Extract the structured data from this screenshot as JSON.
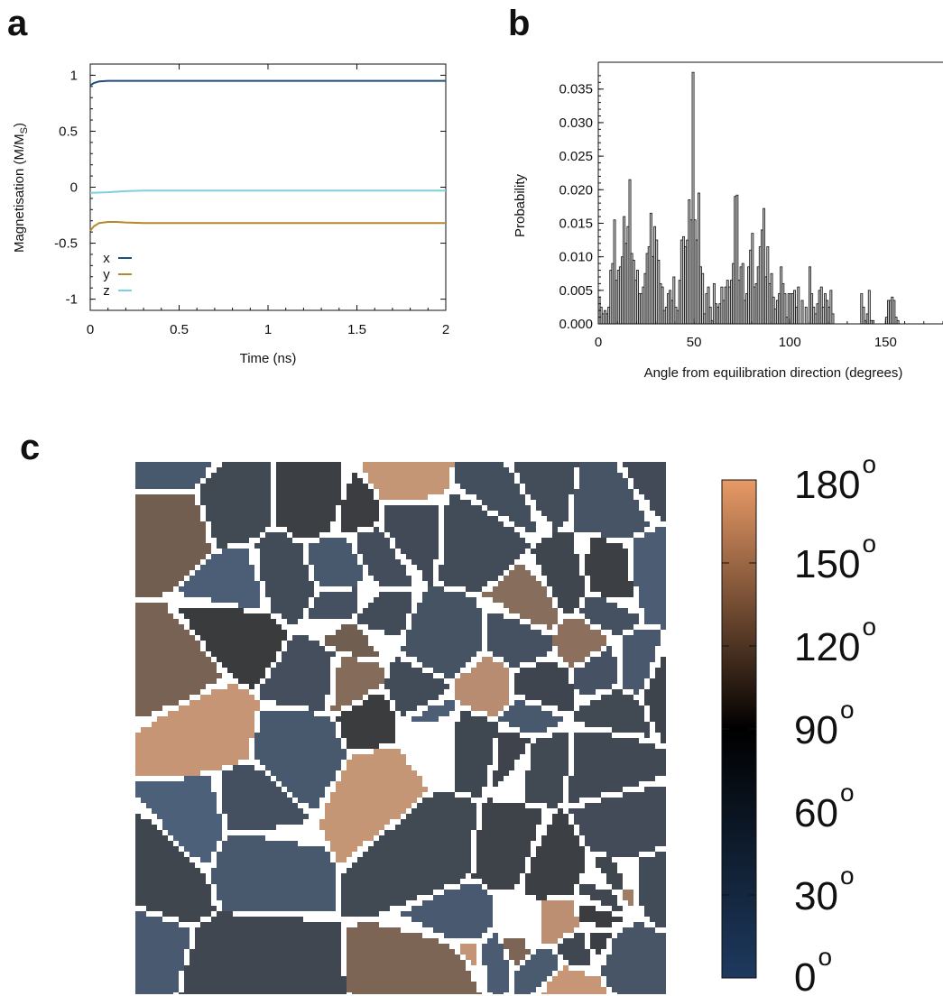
{
  "panels": {
    "a": "a",
    "b": "b",
    "c": "c"
  },
  "chart_data": [
    {
      "type": "line",
      "xlabel": "Time (ns)",
      "ylabel": "Magnetisation (M/M",
      "ylabel_sub": "S",
      "ylabel_close": ")",
      "xlim": [
        0,
        2
      ],
      "ylim": [
        -1.1,
        1.1
      ],
      "xticks": [
        "0",
        "0.5",
        "1",
        "1.5",
        "2"
      ],
      "xtick_values": [
        0,
        0.5,
        1,
        1.5,
        2
      ],
      "yticks": [
        "1",
        "0.5",
        "0",
        "-0.5",
        "-1"
      ],
      "ytick_values": [
        1,
        0.5,
        0,
        -0.5,
        -1
      ],
      "legend_position": "bottom-left",
      "series": [
        {
          "name": "x",
          "color": "#1f4e79",
          "x": [
            0,
            0.02,
            0.05,
            0.1,
            0.15,
            0.2,
            0.5,
            1,
            1.5,
            2
          ],
          "values": [
            0.91,
            0.93,
            0.945,
            0.95,
            0.95,
            0.95,
            0.95,
            0.95,
            0.95,
            0.95
          ]
        },
        {
          "name": "y",
          "color": "#b5892e",
          "x": [
            0,
            0.02,
            0.05,
            0.1,
            0.15,
            0.2,
            0.3,
            0.5,
            1,
            1.5,
            2
          ],
          "values": [
            -0.39,
            -0.35,
            -0.32,
            -0.31,
            -0.31,
            -0.315,
            -0.32,
            -0.32,
            -0.32,
            -0.32,
            -0.32
          ]
        },
        {
          "name": "z",
          "color": "#7fcfe0",
          "x": [
            0,
            0.1,
            0.2,
            0.3,
            0.5,
            1,
            1.5,
            2
          ],
          "values": [
            -0.05,
            -0.045,
            -0.035,
            -0.03,
            -0.03,
            -0.03,
            -0.03,
            -0.03
          ]
        }
      ]
    },
    {
      "type": "bar",
      "xlabel": "Angle from equilibration direction (degrees)",
      "ylabel": "Probability",
      "xlim": [
        0,
        180
      ],
      "ylim": [
        0,
        0.039
      ],
      "xticks": [
        "0",
        "50",
        "100",
        "150"
      ],
      "xtick_values": [
        0,
        50,
        100,
        150
      ],
      "yticks": [
        "0.000",
        "0.005",
        "0.010",
        "0.015",
        "0.020",
        "0.025",
        "0.030",
        "0.035"
      ],
      "ytick_values": [
        0,
        0.005,
        0.01,
        0.015,
        0.02,
        0.025,
        0.03,
        0.035
      ],
      "bin_width": 1,
      "bins_start": [
        0,
        1,
        2,
        3,
        4,
        5,
        6,
        7,
        8,
        9,
        10,
        11,
        12,
        13,
        14,
        15,
        16,
        17,
        18,
        19,
        20,
        21,
        22,
        23,
        24,
        25,
        26,
        27,
        28,
        29,
        30,
        31,
        32,
        33,
        34,
        35,
        36,
        37,
        38,
        39,
        40,
        41,
        42,
        43,
        44,
        45,
        46,
        47,
        48,
        49,
        50,
        51,
        52,
        53,
        54,
        55,
        56,
        57,
        58,
        59,
        60,
        61,
        62,
        63,
        64,
        65,
        66,
        67,
        68,
        69,
        70,
        71,
        72,
        73,
        74,
        75,
        76,
        77,
        78,
        79,
        80,
        81,
        82,
        83,
        84,
        85,
        86,
        87,
        88,
        89,
        90,
        91,
        92,
        93,
        94,
        95,
        96,
        97,
        98,
        99,
        100,
        101,
        102,
        103,
        104,
        105,
        106,
        107,
        108,
        109,
        110,
        111,
        112,
        113,
        114,
        115,
        116,
        117,
        118,
        119,
        120,
        121,
        122,
        123,
        124,
        125,
        126,
        127,
        128,
        129,
        130,
        131,
        132,
        133,
        134,
        135,
        136,
        137,
        138,
        139,
        140,
        141,
        142,
        143,
        144,
        145,
        146,
        147,
        148,
        149,
        150,
        151,
        152,
        153,
        154,
        155,
        156,
        157,
        158,
        159,
        160,
        161,
        162,
        163
      ],
      "values": [
        0.004,
        0.0025,
        0.0015,
        0.002,
        0.0015,
        0.0025,
        0.008,
        0.009,
        0.0155,
        0.0065,
        0.008,
        0.0085,
        0.01,
        0.016,
        0.012,
        0.0145,
        0.0215,
        0.0105,
        0.0095,
        0.0065,
        0.008,
        0.0045,
        0.0045,
        0.0055,
        0.0075,
        0.0105,
        0.0115,
        0.0165,
        0.01,
        0.0145,
        0.0125,
        0.0095,
        0.006,
        0.0055,
        0.002,
        0.0025,
        0.0045,
        0.005,
        0.0035,
        0.007,
        0.0025,
        0.002,
        0.0065,
        0.0125,
        0.013,
        0.0115,
        0.0125,
        0.0185,
        0.0155,
        0.0375,
        0.0155,
        0.0125,
        0.0195,
        0.0085,
        0.0075,
        0.0015,
        0.0045,
        0.0055,
        0.0025,
        0.0005,
        0.006,
        0.003,
        0.0025,
        0.003,
        0.0055,
        0.0035,
        0.0055,
        0.0065,
        0.0055,
        0.0065,
        0.009,
        0.019,
        0.0192,
        0.0065,
        0.0085,
        0.009,
        0.0035,
        0.0045,
        0.0085,
        0.011,
        0.0135,
        0.0055,
        0.006,
        0.0085,
        0.0115,
        0.014,
        0.0172,
        0.007,
        0.0115,
        0.006,
        0.0075,
        0.004,
        0.0022,
        0.0035,
        0.0045,
        0.0085,
        0.006,
        0.0045,
        0.001,
        0.0045,
        0.0045,
        0.0045,
        0.005,
        0.0025,
        0.0005,
        0.0,
        0.0,
        0.0,
        0.0,
        0.0,
        0.0,
        0.0,
        0.0,
        0.0,
        0.0,
        0.0,
        0.0,
        0.0,
        0.0,
        0.0,
        0.0,
        0.0,
        0.0,
        0.0,
        0.0,
        0.0,
        0.0,
        0.0,
        0.0,
        0.0,
        0.0,
        0.0,
        0.0,
        0.0,
        0.0,
        0.0,
        0.0,
        0.0,
        0.0,
        0.0,
        0.0,
        0.0,
        0.0,
        0.0,
        0.0,
        0.0,
        0.0,
        0.0,
        0.0,
        0.0,
        0.0,
        0.0,
        0.0,
        0.0,
        0.0,
        0.0,
        0.0,
        0.0,
        0.0,
        0.0,
        0.0,
        0.0,
        0.0,
        0.0,
        0.0,
        0.0,
        0.0,
        0.0
      ],
      "extra_bins": [
        {
          "x": 104,
          "v": 0.0055
        },
        {
          "x": 106,
          "v": 0.0035
        },
        {
          "x": 108,
          "v": 0.0025
        },
        {
          "x": 110,
          "v": 0.0085
        },
        {
          "x": 111,
          "v": 0.0045
        },
        {
          "x": 112,
          "v": 0.0025
        },
        {
          "x": 113,
          "v": 0.0015
        },
        {
          "x": 114,
          "v": 0.003
        },
        {
          "x": 115,
          "v": 0.005
        },
        {
          "x": 116,
          "v": 0.0055
        },
        {
          "x": 117,
          "v": 0.0025
        },
        {
          "x": 118,
          "v": 0.0045
        },
        {
          "x": 119,
          "v": 0.0035
        },
        {
          "x": 120,
          "v": 0.0025
        },
        {
          "x": 121,
          "v": 0.005
        },
        {
          "x": 122,
          "v": 0.0015
        },
        {
          "x": 137,
          "v": 0.0045
        },
        {
          "x": 138,
          "v": 0.0025
        },
        {
          "x": 139,
          "v": 0.0005
        },
        {
          "x": 140,
          "v": 0.0015
        },
        {
          "x": 141,
          "v": 0.005
        },
        {
          "x": 142,
          "v": 0.0005
        },
        {
          "x": 143,
          "v": 0.0005
        },
        {
          "x": 150,
          "v": 0.001
        },
        {
          "x": 151,
          "v": 0.0035
        },
        {
          "x": 152,
          "v": 0.0035
        },
        {
          "x": 153,
          "v": 0.004
        },
        {
          "x": 154,
          "v": 0.0035
        },
        {
          "x": 155,
          "v": 0.001
        },
        {
          "x": 156,
          "v": 0.0005
        }
      ]
    },
    {
      "type": "heatmap",
      "colorbar_ticks": [
        "0",
        "30",
        "60",
        "90",
        "120",
        "150",
        "180"
      ],
      "colorbar_tick_values": [
        0,
        30,
        60,
        90,
        120,
        150,
        180
      ],
      "degree_symbol": "o",
      "colormap": [
        "#1e3a5f",
        "#000000",
        "#e89a66"
      ]
    }
  ]
}
